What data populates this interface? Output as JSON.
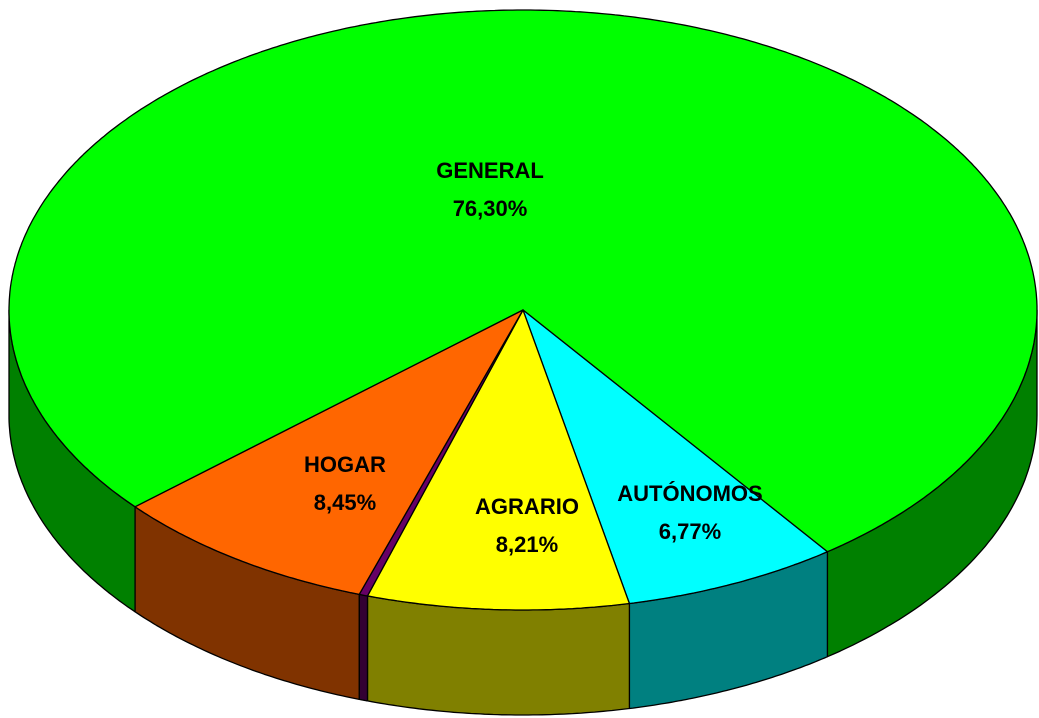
{
  "chart_data": {
    "type": "pie3d",
    "categories": [
      "GENERAL",
      "AUTÓNOMOS",
      "AGRARIO",
      null,
      "HOGAR"
    ],
    "values": [
      76.3,
      6.77,
      8.21,
      0.27,
      8.45
    ],
    "value_labels": [
      "76,30%",
      "6,77%",
      "8,21%",
      null,
      "8,45%"
    ],
    "colors": [
      "#00ff00",
      "#00ffff",
      "#ffff00",
      "#660066",
      "#ff6600"
    ],
    "side_colors": [
      "#008000",
      "#008080",
      "#808000",
      "#330033",
      "#803300"
    ]
  }
}
